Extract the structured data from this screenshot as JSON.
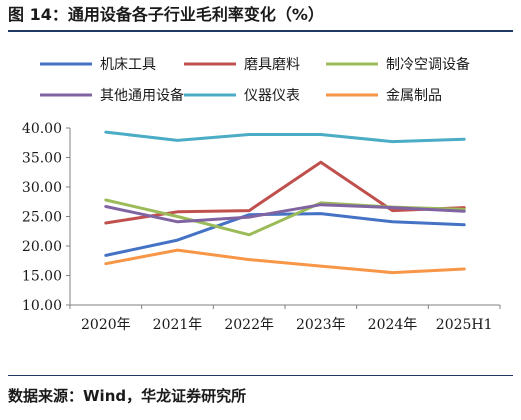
{
  "title": "图 14：通用设备各子行业毛利率变化（%）",
  "source": "数据来源：Wind，华龙证券研究所",
  "chart_data": {
    "type": "line",
    "x": [
      "2020年",
      "2021年",
      "2022年",
      "2023年",
      "2024年",
      "2025H1"
    ],
    "ylim": [
      10,
      40
    ],
    "yticks": [
      10,
      15,
      20,
      25,
      30,
      35,
      40
    ],
    "ytick_labels": [
      "10.00",
      "15.00",
      "20.00",
      "25.00",
      "30.00",
      "35.00",
      "40.00"
    ],
    "grid": false,
    "legend_position": "top",
    "series": [
      {
        "name": "机床工具",
        "color": "#4472c4",
        "values": [
          18.4,
          21.0,
          25.3,
          25.5,
          24.1,
          23.6
        ]
      },
      {
        "name": "磨具磨料",
        "color": "#c0504d",
        "values": [
          23.9,
          25.8,
          26.0,
          34.2,
          26.0,
          26.5
        ]
      },
      {
        "name": "制冷空调设备",
        "color": "#9bbb59",
        "values": [
          27.8,
          25.0,
          21.9,
          27.3,
          26.6,
          26.2
        ]
      },
      {
        "name": "其他通用设备",
        "color": "#8064a2",
        "values": [
          26.7,
          24.1,
          24.9,
          27.0,
          26.5,
          25.9
        ]
      },
      {
        "name": "仪器仪表",
        "color": "#4bacc6",
        "values": [
          39.3,
          37.9,
          38.9,
          38.9,
          37.7,
          38.1
        ]
      },
      {
        "name": "金属制品",
        "color": "#f79646",
        "values": [
          17.0,
          19.3,
          17.7,
          16.6,
          15.5,
          16.1
        ]
      }
    ]
  }
}
